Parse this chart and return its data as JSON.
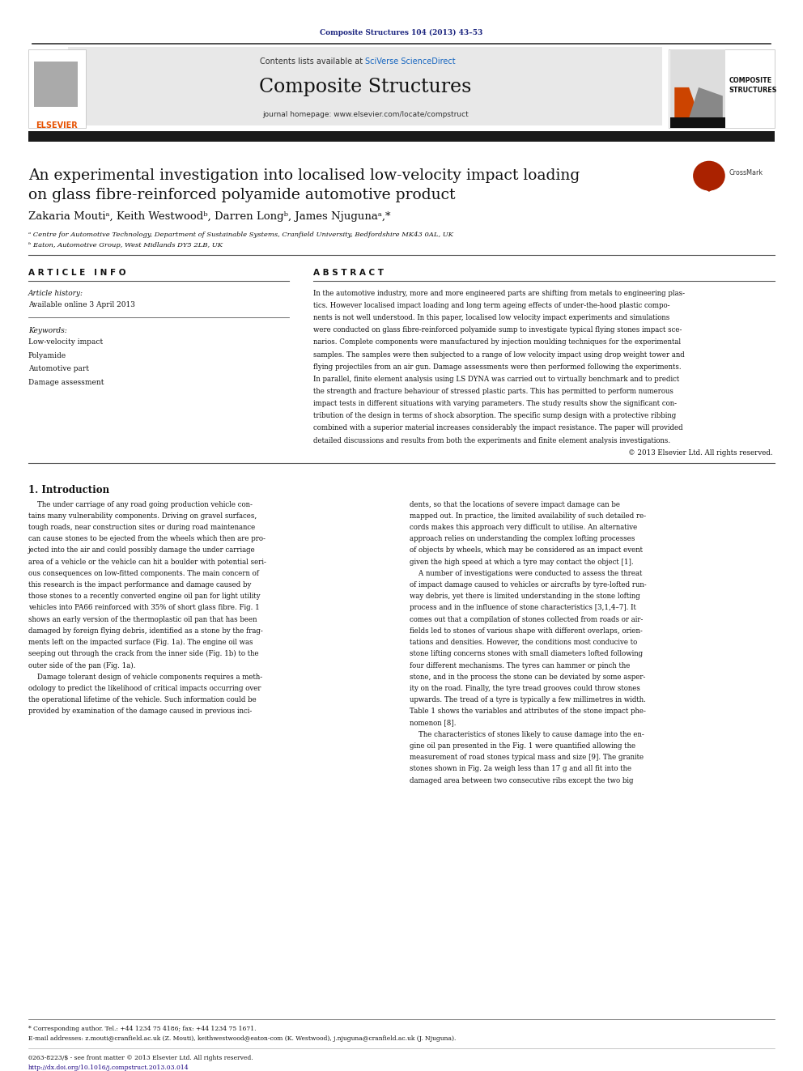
{
  "page_width": 9.92,
  "page_height": 13.23,
  "bg_color": "#ffffff",
  "journal_ref": "Composite Structures 104 (2013) 43–53",
  "journal_ref_color": "#1a237e",
  "header_bg": "#e8e8e8",
  "sciverse_color": "#1565c0",
  "journal_name": "Composite Structures",
  "journal_homepage": "journal homepage: www.elsevier.com/locate/compstruct",
  "elsevier_color": "#e65100",
  "thick_bar_color": "#1a1a1a",
  "title_line1": "An experimental investigation into localised low-velocity impact loading",
  "title_line2": "on glass fibre-reinforced polyamide automotive product",
  "authors": "Zakaria Moutiᵃ, Keith Westwoodᵇ, Darren Longᵇ, James Njugunaᵃ,*",
  "affil1": "ᵃ Centre for Automotive Technology, Department of Sustainable Systems, Cranfield University, Bedfordshire MK43 0AL, UK",
  "affil2": "ᵇ Eaton, Automotive Group, West Midlands DY5 2LB, UK",
  "article_info_title": "A R T I C L E   I N F O",
  "abstract_title": "A B S T R A C T",
  "article_history_label": "Article history:",
  "available_online": "Available online 3 April 2013",
  "keywords_label": "Keywords:",
  "kw1": "Low-velocity impact",
  "kw2": "Polyamide",
  "kw3": "Automotive part",
  "kw4": "Damage assessment",
  "copyright_text": "© 2013 Elsevier Ltd. All rights reserved.",
  "section1_title": "1. Introduction",
  "footnote_star": "* Corresponding author. Tel.: +44 1234 75 4186; fax: +44 1234 75 1671.",
  "footnote_email": "E-mail addresses: z.mouti@cranfield.ac.uk (Z. Mouti), keithwestwood@eaton-com (K. Westwood), j.njuguna@cranfield.ac.uk (J. Njuguna).",
  "issn": "0263-8223/$ - see front matter © 2013 Elsevier Ltd. All rights reserved.",
  "doi": "http://dx.doi.org/10.1016/j.compstruct.2013.03.014",
  "abstract_lines": [
    "In the automotive industry, more and more engineered parts are shifting from metals to engineering plas-",
    "tics. However localised impact loading and long term ageing effects of under-the-hood plastic compo-",
    "nents is not well understood. In this paper, localised low velocity impact experiments and simulations",
    "were conducted on glass fibre-reinforced polyamide sump to investigate typical flying stones impact sce-",
    "narios. Complete components were manufactured by injection moulding techniques for the experimental",
    "samples. The samples were then subjected to a range of low velocity impact using drop weight tower and",
    "flying projectiles from an air gun. Damage assessments were then performed following the experiments.",
    "In parallel, finite element analysis using LS DYNA was carried out to virtually benchmark and to predict",
    "the strength and fracture behaviour of stressed plastic parts. This has permitted to perform numerous",
    "impact tests in different situations with varying parameters. The study results show the significant con-",
    "tribution of the design in terms of shock absorption. The specific sump design with a protective ribbing",
    "combined with a superior material increases considerably the impact resistance. The paper will provided",
    "detailed discussions and results from both the experiments and finite element analysis investigations."
  ],
  "intro1_lines": [
    "    The under carriage of any road going production vehicle con-",
    "tains many vulnerability components. Driving on gravel surfaces,",
    "tough roads, near construction sites or during road maintenance",
    "can cause stones to be ejected from the wheels which then are pro-",
    "jected into the air and could possibly damage the under carriage",
    "area of a vehicle or the vehicle can hit a boulder with potential seri-",
    "ous consequences on low-fitted components. The main concern of",
    "this research is the impact performance and damage caused by",
    "those stones to a recently converted engine oil pan for light utility",
    "vehicles into PA66 reinforced with 35% of short glass fibre. Fig. 1",
    "shows an early version of the thermoplastic oil pan that has been",
    "damaged by foreign flying debris, identified as a stone by the frag-",
    "ments left on the impacted surface (Fig. 1a). The engine oil was",
    "seeping out through the crack from the inner side (Fig. 1b) to the",
    "outer side of the pan (Fig. 1a).",
    "    Damage tolerant design of vehicle components requires a meth-",
    "odology to predict the likelihood of critical impacts occurring over",
    "the operational lifetime of the vehicle. Such information could be",
    "provided by examination of the damage caused in previous inci-"
  ],
  "intro2_lines": [
    "dents, so that the locations of severe impact damage can be",
    "mapped out. In practice, the limited availability of such detailed re-",
    "cords makes this approach very difficult to utilise. An alternative",
    "approach relies on understanding the complex lofting processes",
    "of objects by wheels, which may be considered as an impact event",
    "given the high speed at which a tyre may contact the object [1].",
    "    A number of investigations were conducted to assess the threat",
    "of impact damage caused to vehicles or aircrafts by tyre-lofted run-",
    "way debris, yet there is limited understanding in the stone lofting",
    "process and in the influence of stone characteristics [3,1,4–7]. It",
    "comes out that a compilation of stones collected from roads or air-",
    "fields led to stones of various shape with different overlaps, orien-",
    "tations and densities. However, the conditions most conducive to",
    "stone lifting concerns stones with small diameters lofted following",
    "four different mechanisms. The tyres can hammer or pinch the",
    "stone, and in the process the stone can be deviated by some asper-",
    "ity on the road. Finally, the tyre tread grooves could throw stones",
    "upwards. The tread of a tyre is typically a few millimetres in width.",
    "Table 1 shows the variables and attributes of the stone impact phe-",
    "nomenon [8].",
    "    The characteristics of stones likely to cause damage into the en-",
    "gine oil pan presented in the Fig. 1 were quantified allowing the",
    "measurement of road stones typical mass and size [9]. The granite",
    "stones shown in Fig. 2a weigh less than 17 g and all fit into the",
    "damaged area between two consecutive ribs except the two big"
  ]
}
